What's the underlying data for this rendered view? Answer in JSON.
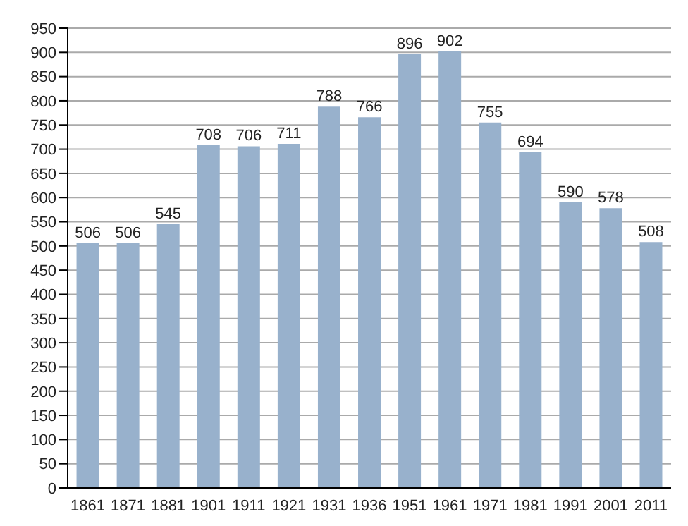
{
  "chart_data": {
    "type": "bar",
    "categories": [
      "1861",
      "1871",
      "1881",
      "1901",
      "1911",
      "1921",
      "1931",
      "1936",
      "1951",
      "1961",
      "1971",
      "1981",
      "1991",
      "2001",
      "2011"
    ],
    "values": [
      506,
      506,
      545,
      708,
      706,
      711,
      788,
      766,
      896,
      902,
      755,
      694,
      590,
      578,
      508
    ],
    "color": "#98b1cc",
    "data_labels": true,
    "grid": "y",
    "ylim": [
      0,
      950
    ],
    "yticks": [
      0,
      50,
      100,
      150,
      200,
      250,
      300,
      350,
      400,
      450,
      500,
      550,
      600,
      650,
      700,
      750,
      800,
      850,
      900,
      950
    ]
  }
}
